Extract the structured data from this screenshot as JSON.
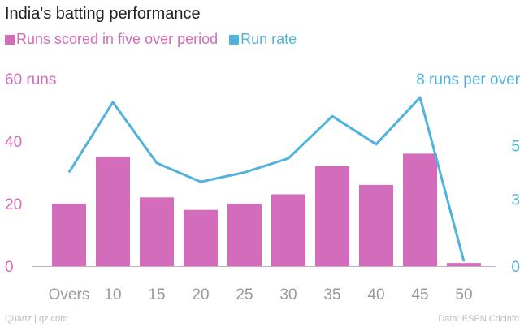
{
  "chart_data": {
    "type": "bar+line",
    "title": "India's batting performance",
    "categories": [
      "Overs",
      "10",
      "15",
      "20",
      "25",
      "30",
      "35",
      "40",
      "45",
      "50"
    ],
    "series": [
      {
        "name": "Runs scored in five over period",
        "type": "bar",
        "axis": "left",
        "color": "#d36cba",
        "values": [
          20,
          35,
          22,
          18,
          20,
          23,
          32,
          26,
          36,
          1
        ]
      },
      {
        "name": "Run rate",
        "type": "line",
        "axis": "right",
        "color": "#51b2dc",
        "values": [
          4.0,
          7.0,
          4.4,
          3.6,
          4.0,
          4.6,
          6.4,
          5.2,
          7.2,
          0.2
        ]
      }
    ],
    "left_axis": {
      "ylim": [
        0,
        60
      ],
      "ticks": [
        "0",
        "20",
        "40",
        "60 runs"
      ]
    },
    "right_axis": {
      "ylim": [
        0,
        8
      ],
      "ticks": [
        "0",
        "3",
        "5",
        "8 runs per over"
      ]
    },
    "grid": false,
    "legend": "top-left"
  },
  "footer": {
    "source_left": "Quartz | qz.com",
    "source_right": "Data: ESPN Cricinfo"
  }
}
